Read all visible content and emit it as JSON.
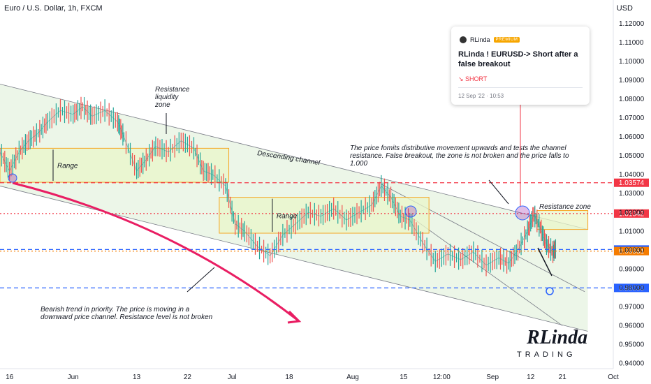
{
  "header": {
    "symbol": "Euro / U.S. Dollar, 1h, FXCM",
    "currency": "USD"
  },
  "card": {
    "author": "RLinda",
    "badge": "PREMIUM",
    "title": "RLinda ! EURUSD-> Short after a false breakout",
    "direction": "↘ SHORT",
    "timestamp": "12 Sep '22 · 10:53"
  },
  "logo": {
    "text": "RLinda",
    "subtitle": "TRADING"
  },
  "chart_data": {
    "type": "line",
    "symbol": "EURUSD",
    "timeframe": "1h",
    "y_axis": {
      "min": 0.935,
      "max": 1.13,
      "ticks": [
        1.12,
        1.11,
        1.1,
        1.09,
        1.08,
        1.07,
        1.06,
        1.05,
        1.04,
        1.03,
        1.02,
        1.01,
        1.0,
        0.99,
        0.98,
        0.97,
        0.96,
        0.95,
        0.94
      ]
    },
    "x_axis": {
      "labels": [
        "16",
        "Jun",
        "13",
        "22",
        "Jul",
        "18",
        "Aug",
        "15",
        "12:00",
        "Sep",
        "12",
        "21",
        "Oct"
      ]
    },
    "x_tick_positions": [
      0.0,
      1.0,
      2.0,
      2.8,
      3.5,
      4.4,
      5.4,
      6.2,
      6.8,
      7.6,
      8.2,
      8.7,
      9.5
    ],
    "x_range": [
      -0.15,
      9.5
    ],
    "price_path": [
      [
        -0.15,
        1.052
      ],
      [
        0.0,
        1.042
      ],
      [
        0.15,
        1.052
      ],
      [
        0.3,
        1.058
      ],
      [
        0.45,
        1.062
      ],
      [
        0.6,
        1.068
      ],
      [
        0.8,
        1.074
      ],
      [
        1.0,
        1.072
      ],
      [
        1.15,
        1.076
      ],
      [
        1.3,
        1.071
      ],
      [
        1.5,
        1.074
      ],
      [
        1.7,
        1.068
      ],
      [
        1.8,
        1.06
      ],
      [
        2.0,
        1.042
      ],
      [
        2.15,
        1.048
      ],
      [
        2.3,
        1.055
      ],
      [
        2.5,
        1.052
      ],
      [
        2.7,
        1.058
      ],
      [
        2.9,
        1.054
      ],
      [
        3.05,
        1.042
      ],
      [
        3.2,
        1.04
      ],
      [
        3.4,
        1.034
      ],
      [
        3.55,
        1.014
      ],
      [
        3.7,
        1.01
      ],
      [
        3.9,
        1.002
      ],
      [
        4.1,
        0.997
      ],
      [
        4.3,
        1.008
      ],
      [
        4.5,
        1.014
      ],
      [
        4.7,
        1.02
      ],
      [
        4.9,
        1.018
      ],
      [
        5.1,
        1.022
      ],
      [
        5.3,
        1.016
      ],
      [
        5.5,
        1.02
      ],
      [
        5.7,
        1.024
      ],
      [
        5.85,
        1.034
      ],
      [
        6.0,
        1.028
      ],
      [
        6.15,
        1.018
      ],
      [
        6.3,
        1.016
      ],
      [
        6.5,
        1.004
      ],
      [
        6.7,
        0.994
      ],
      [
        6.9,
        0.998
      ],
      [
        7.1,
        0.995
      ],
      [
        7.3,
        0.999
      ],
      [
        7.5,
        0.992
      ],
      [
        7.7,
        0.996
      ],
      [
        7.85,
        0.993
      ],
      [
        8.0,
        1.0
      ],
      [
        8.15,
        1.01
      ],
      [
        8.25,
        1.019
      ],
      [
        8.35,
        1.012
      ],
      [
        8.45,
        1.003
      ],
      [
        8.55,
        0.999
      ],
      [
        8.6,
        1.001
      ]
    ],
    "levels": [
      {
        "value": 1.03574,
        "label": "1.03574",
        "color": "#f23645",
        "style": "dashed"
      },
      {
        "value": 1.01942,
        "label": "1.01942",
        "color": "#f23645",
        "style": "dotted"
      },
      {
        "value": 1.00036,
        "label": "1.00036",
        "color": "#2962ff",
        "style": "dashed"
      },
      {
        "value": 0.99951,
        "label": "0.99951",
        "color": "#f57c00",
        "style": "dotted"
      },
      {
        "value": 0.98,
        "label": "0.98000",
        "color": "#2962ff",
        "style": "dashed"
      }
    ],
    "zones": [
      {
        "x0": -0.15,
        "x1": 3.45,
        "y0": 1.036,
        "y1": 1.054,
        "label": "Range"
      },
      {
        "x0": 3.3,
        "x1": 6.6,
        "y0": 1.009,
        "y1": 1.028,
        "label": "Range"
      },
      {
        "x0": 8.3,
        "x1": 9.1,
        "y0": 1.011,
        "y1": 1.021,
        "label": "Resistance zone"
      }
    ],
    "channel": {
      "upper": [
        [
          -0.15,
          1.088
        ],
        [
          9.1,
          1.011
        ]
      ],
      "lower": [
        [
          -0.15,
          1.034
        ],
        [
          9.1,
          0.957
        ]
      ],
      "label": "Descending channel"
    },
    "annotations": [
      "Resistance liquidity zone",
      "Descending channel",
      "The price fomits distributive movement upwards and tests the channel resistance. False breakout, the zone is not broken and the price falls to 1.000",
      "Resistance zone",
      "Bearish trend in priority. The price is moving in a downward price channel. Resistance level is not broken"
    ],
    "colors": {
      "bull": "#26a69a",
      "bear": "#ef5350",
      "arrow": "#e91e63",
      "channel_fill": "#dcefd6",
      "zone_fill": "#eaf5c9",
      "zone_stroke": "#f5a623"
    }
  }
}
